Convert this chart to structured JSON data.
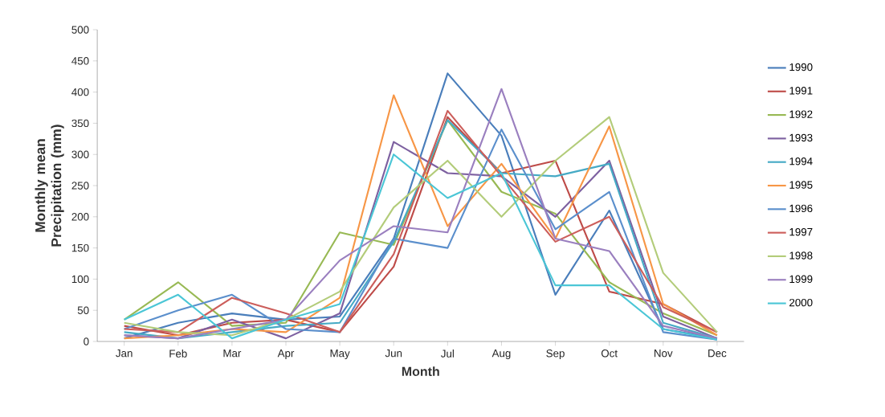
{
  "chart_data": {
    "type": "line",
    "xlabel": "Month",
    "ylabel": "Monthly mean Precipitation (mm)",
    "categories": [
      "Jan",
      "Feb",
      "Mar",
      "Apr",
      "May",
      "Jun",
      "Jul",
      "Aug",
      "Sep",
      "Oct",
      "Nov",
      "Dec"
    ],
    "ylim": [
      0,
      500
    ],
    "yticks": [
      0,
      50,
      100,
      150,
      200,
      250,
      300,
      350,
      400,
      450,
      500
    ],
    "grid": false,
    "legend": "right",
    "marker": "none",
    "line_style": "solid",
    "series": [
      {
        "name": "1990",
        "color": "#4a7ebb",
        "values": [
          5,
          30,
          45,
          35,
          40,
          165,
          430,
          330,
          75,
          210,
          20,
          5
        ]
      },
      {
        "name": "1991",
        "color": "#be4b48",
        "values": [
          25,
          10,
          30,
          35,
          15,
          120,
          360,
          270,
          290,
          80,
          60,
          15
        ]
      },
      {
        "name": "1992",
        "color": "#98b954",
        "values": [
          35,
          95,
          25,
          30,
          175,
          155,
          355,
          240,
          205,
          95,
          45,
          10
        ]
      },
      {
        "name": "1993",
        "color": "#7d60a0",
        "values": [
          10,
          5,
          35,
          5,
          45,
          320,
          270,
          265,
          200,
          290,
          40,
          5
        ]
      },
      {
        "name": "1994",
        "color": "#46aac5",
        "values": [
          15,
          5,
          15,
          25,
          30,
          160,
          355,
          270,
          265,
          285,
          30,
          5
        ]
      },
      {
        "name": "1995",
        "color": "#f79646",
        "values": [
          5,
          10,
          20,
          15,
          70,
          395,
          185,
          285,
          165,
          345,
          60,
          10
        ]
      },
      {
        "name": "1996",
        "color": "#5b8fcc",
        "values": [
          20,
          50,
          75,
          20,
          15,
          165,
          150,
          340,
          180,
          240,
          15,
          3
        ]
      },
      {
        "name": "1997",
        "color": "#cc5e5b",
        "values": [
          20,
          15,
          70,
          45,
          15,
          140,
          370,
          265,
          160,
          200,
          55,
          15
        ]
      },
      {
        "name": "1998",
        "color": "#b3cc7a",
        "values": [
          30,
          15,
          10,
          35,
          80,
          215,
          290,
          200,
          290,
          360,
          110,
          15
        ]
      },
      {
        "name": "1999",
        "color": "#9a7fbf",
        "values": [
          10,
          5,
          20,
          35,
          130,
          185,
          175,
          405,
          165,
          145,
          25,
          5
        ]
      },
      {
        "name": "2000",
        "color": "#4bc6d6",
        "values": [
          35,
          75,
          5,
          35,
          60,
          300,
          230,
          270,
          90,
          90,
          20,
          3
        ]
      }
    ]
  }
}
